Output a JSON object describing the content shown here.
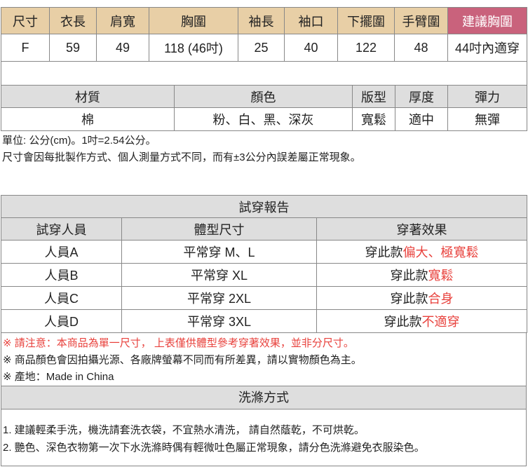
{
  "size_table": {
    "headers": [
      "尺寸",
      "衣長",
      "肩寬",
      "胸圍",
      "袖長",
      "袖口",
      "下擺圍",
      "手臂圍",
      "建議胸圍"
    ],
    "values": [
      "F",
      "59",
      "49",
      "118 (46吋)",
      "25",
      "40",
      "122",
      "48",
      "44吋內適穿"
    ]
  },
  "spec_table": {
    "headers": [
      "材質",
      "顏色",
      "版型",
      "厚度",
      "彈力"
    ],
    "values": [
      "棉",
      "粉、白、黑、深灰",
      "寬鬆",
      "適中",
      "無彈"
    ]
  },
  "unit_note": "單位: 公分(cm)。1吋=2.54公分。",
  "tolerance_note": "尺寸會因每批製作方式、個人測量方式不同，而有±3公分內誤差屬正常現象。",
  "trial": {
    "title": "試穿報告",
    "headers": [
      "試穿人員",
      "體型尺寸",
      "穿著效果"
    ],
    "rows": [
      {
        "person": "人員A",
        "size": "平常穿 M、L",
        "effect_prefix": "穿此款",
        "effect": "偏大、極寬鬆"
      },
      {
        "person": "人員B",
        "size": "平常穿 XL",
        "effect_prefix": "穿此款",
        "effect": "寬鬆"
      },
      {
        "person": "人員C",
        "size": "平常穿 2XL",
        "effect_prefix": "穿此款",
        "effect": "合身"
      },
      {
        "person": "人員D",
        "size": "平常穿 3XL",
        "effect_prefix": "穿此款",
        "effect": "不適穿"
      }
    ]
  },
  "notes": [
    "※ 請注意：本商品為單一尺寸， 上表僅供體型參考穿著效果，並非分尺寸。",
    "※ 商品顏色會因拍攝光源、各廠牌螢幕不同而有所差異，請以實物顏色為主。",
    "※ 產地：Made in China"
  ],
  "washing": {
    "title": "洗滌方式",
    "items": [
      "1. 建議輕柔手洗，機洗請套洗衣袋，不宜熱水清洗， 請自然蔭乾，不可烘乾。",
      "2. 艷色、深色衣物第一次下水洗滌時偶有輕微吐色屬正常現象，請分色洗滌避免衣服染色。"
    ]
  },
  "colors": {
    "header_tan": "#e8cfa6",
    "highlight_pink": "#c9627c",
    "header_gray": "#dedede",
    "warning_red": "#e8413c"
  }
}
